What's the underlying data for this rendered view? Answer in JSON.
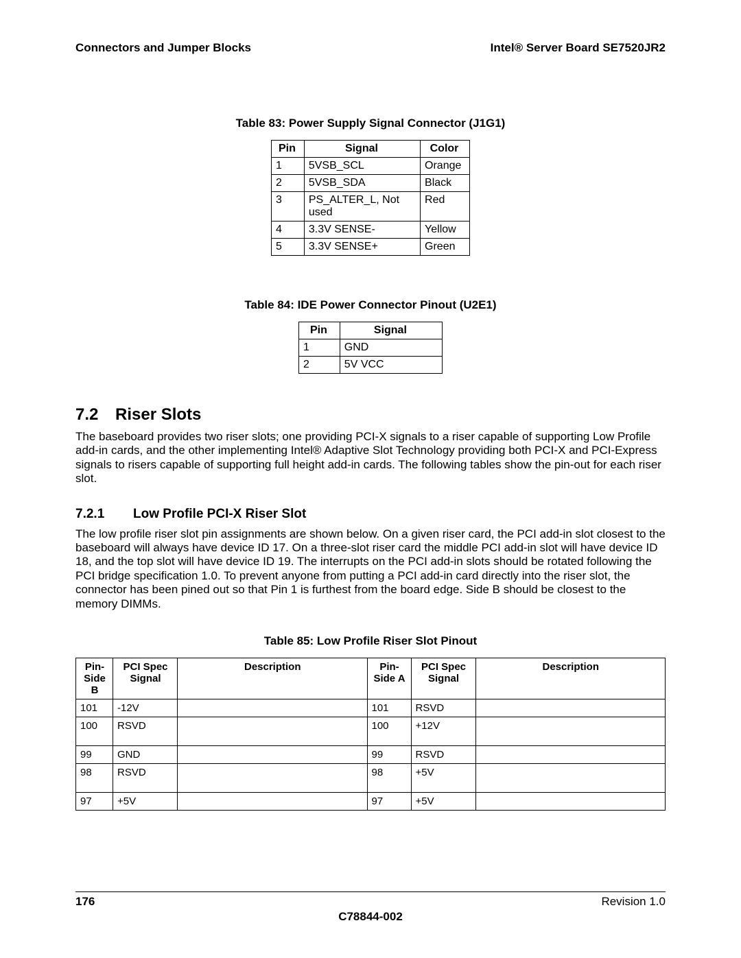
{
  "header": {
    "left": "Connectors and Jumper Blocks",
    "right": "Intel® Server Board SE7520JR2"
  },
  "table83": {
    "caption": "Table 83: Power Supply Signal Connector (J1G1)",
    "headers": [
      "Pin",
      "Signal",
      "Color"
    ],
    "rows": [
      [
        "1",
        "5VSB_SCL",
        "Orange"
      ],
      [
        "2",
        "5VSB_SDA",
        "Black"
      ],
      [
        "3",
        "PS_ALTER_L, Not used",
        "Red"
      ],
      [
        "4",
        "3.3V SENSE-",
        "Yellow"
      ],
      [
        "5",
        "3.3V SENSE+",
        "Green"
      ]
    ]
  },
  "table84": {
    "caption": "Table 84: IDE Power Connector Pinout (U2E1)",
    "headers": [
      "Pin",
      "Signal"
    ],
    "rows": [
      [
        "1",
        "GND"
      ],
      [
        "2",
        "5V VCC"
      ]
    ]
  },
  "section72": {
    "number": "7.2",
    "title": "Riser Slots",
    "body": "The baseboard provides two riser slots; one providing PCI-X signals to a riser capable of supporting Low Profile add-in cards, and the other implementing Intel® Adaptive Slot Technology providing both PCI-X and PCI-Express signals to risers capable of supporting full height add-in cards. The following tables show the pin-out for each riser slot."
  },
  "section721": {
    "number": "7.2.1",
    "title": "Low Profile PCI-X Riser Slot",
    "body": "The low profile riser slot pin assignments are shown below. On a given riser card, the PCI add-in slot closest to the baseboard will always have device ID 17. On a three-slot riser card the middle PCI add-in slot will have device ID 18, and the top slot will have device ID 19. The interrupts on the PCI add-in slots should be rotated following the PCI bridge specification 1.0. To prevent anyone from putting a PCI add-in card directly into the riser slot, the connector has been pined out so that Pin 1 is furthest from the board edge. Side B should be closest to the memory DIMMs."
  },
  "table85": {
    "caption": "Table 85: Low Profile Riser Slot Pinout",
    "headers": [
      "Pin-Side B",
      "PCI Spec Signal",
      "Description",
      "Pin-Side A",
      "PCI Spec Signal",
      "Description"
    ],
    "rows": [
      {
        "tall": false,
        "cells": [
          "101",
          "-12V",
          "",
          "101",
          "RSVD",
          ""
        ]
      },
      {
        "tall": true,
        "cells": [
          "100",
          "RSVD",
          "",
          "100",
          "+12V",
          ""
        ]
      },
      {
        "tall": false,
        "cells": [
          "99",
          "GND",
          "",
          "99",
          "RSVD",
          ""
        ]
      },
      {
        "tall": true,
        "cells": [
          "98",
          "RSVD",
          "",
          "98",
          "+5V",
          ""
        ]
      },
      {
        "tall": false,
        "cells": [
          "97",
          "+5V",
          "",
          "97",
          "+5V",
          ""
        ]
      }
    ]
  },
  "footer": {
    "page": "176",
    "revision": "Revision 1.0",
    "docnum": "C78844-002"
  }
}
